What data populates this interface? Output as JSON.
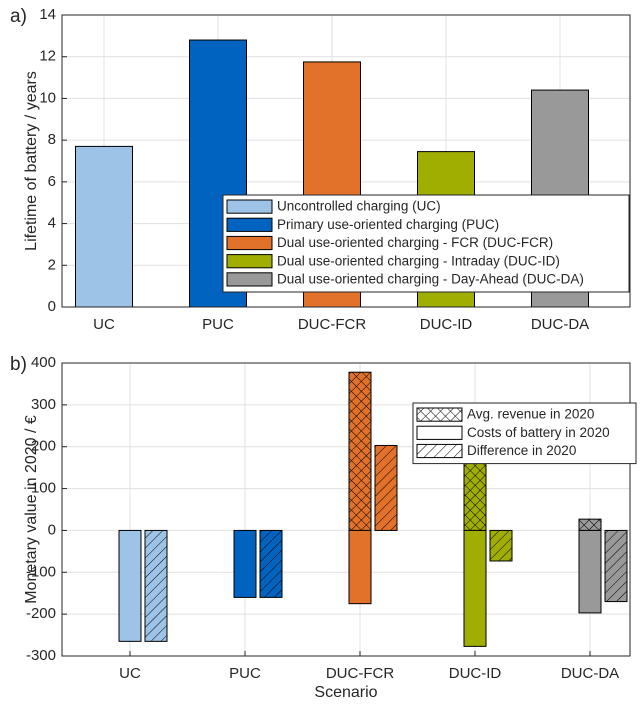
{
  "chart_data": [
    {
      "type": "bar",
      "panel_label": "a)",
      "y_label": "Lifetime of battery / years",
      "categories": [
        "UC",
        "PUC",
        "DUC-FCR",
        "DUC-ID",
        "DUC-DA"
      ],
      "values": [
        7.7,
        12.8,
        11.75,
        7.45,
        10.4
      ],
      "colors": [
        "#9dc3e6",
        "#0063c0",
        "#e2712a",
        "#9fae00",
        "#999999"
      ],
      "legend_labels": [
        "Uncontrolled charging (UC)",
        "Primary use-oriented charging (PUC)",
        "Dual use-oriented charging - FCR (DUC-FCR)",
        "Dual use-oriented charging - Intraday (DUC-ID)",
        "Dual use-oriented charging - Day-Ahead (DUC-DA)"
      ],
      "legend_position": "lower right",
      "ylim": [
        0,
        14
      ],
      "yticks": [
        0,
        2,
        4,
        6,
        8,
        10,
        12,
        14
      ],
      "grid": true
    },
    {
      "type": "grouped_bar",
      "panel_label": "b)",
      "y_label": "Monetary value in 2020 / €",
      "x_label": "Scenario",
      "categories": [
        "UC",
        "PUC",
        "DUC-FCR",
        "DUC-ID",
        "DUC-DA"
      ],
      "colors": [
        "#9dc3e6",
        "#0063c0",
        "#e2712a",
        "#9fae00",
        "#999999"
      ],
      "series": [
        {
          "name": "Avg. revenue in 2020",
          "hatch": "cross",
          "values": [
            0,
            0,
            378,
            203,
            27
          ]
        },
        {
          "name": "Costs of battery in 2020",
          "hatch": "none",
          "values": [
            -265,
            -160,
            -175,
            -277,
            -197
          ]
        },
        {
          "name": "Difference in 2020",
          "hatch": "diagonal",
          "values": [
            -265,
            -160,
            203,
            -73,
            -170
          ]
        }
      ],
      "legend_position": "upper right",
      "ylim": [
        -300,
        400
      ],
      "yticks": [
        -300,
        -200,
        -100,
        0,
        100,
        200,
        300,
        400
      ],
      "grid": true
    }
  ]
}
